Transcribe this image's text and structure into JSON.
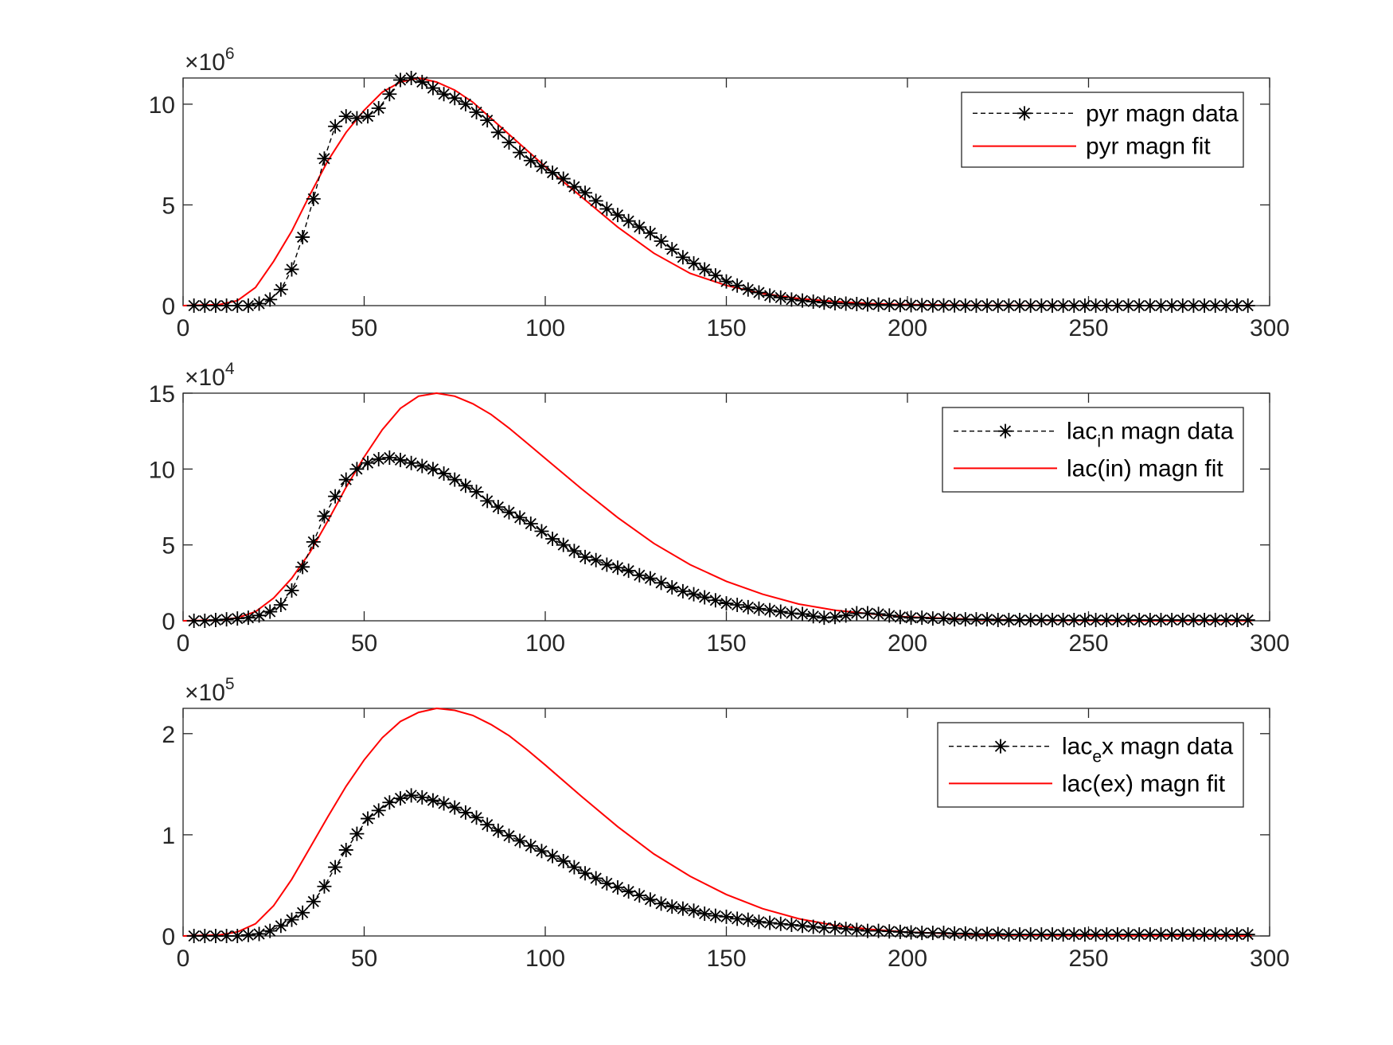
{
  "colors": {
    "data": "#000000",
    "fit": "#ff0000",
    "axes": "#262626",
    "background": "#ffffff"
  },
  "chart_data": [
    {
      "type": "line",
      "ylim": [
        0,
        11300000
      ],
      "xlim": [
        0,
        300
      ],
      "exponent_label": {
        "prefix": "×10",
        "power": "6"
      },
      "xticks": [
        0,
        50,
        100,
        150,
        200,
        250,
        300
      ],
      "yticks": [
        0,
        5,
        10
      ],
      "ytick_scale": 1000000,
      "legend_position": "top-right",
      "series": [
        {
          "name": "pyr magn data",
          "style": "dashed-black-asterisk",
          "x": [
            3,
            6,
            9,
            12,
            15,
            18,
            21,
            24,
            27,
            30,
            33,
            36,
            39,
            42,
            45,
            48,
            51,
            54,
            57,
            60,
            63,
            66,
            69,
            72,
            75,
            78,
            81,
            84,
            87,
            90,
            93,
            96,
            99,
            102,
            105,
            108,
            111,
            114,
            117,
            120,
            123,
            126,
            129,
            132,
            135,
            138,
            141,
            144,
            147,
            150,
            153,
            156,
            159,
            162,
            165,
            168,
            171,
            174,
            177,
            180,
            183,
            186,
            189,
            192,
            195,
            198,
            201,
            204,
            207,
            210,
            213,
            216,
            219,
            222,
            225,
            228,
            231,
            234,
            237,
            240,
            243,
            246,
            249,
            252,
            255,
            258,
            261,
            264,
            267,
            270,
            273,
            276,
            279,
            282,
            285,
            288,
            291,
            294
          ],
          "values": [
            0,
            0,
            0,
            0,
            0,
            0,
            100000,
            300000,
            800000,
            1800000,
            3400000,
            5300000,
            7300000,
            8900000,
            9400000,
            9300000,
            9400000,
            9800000,
            10500000,
            11200000,
            11300000,
            11100000,
            10800000,
            10500000,
            10300000,
            10000000,
            9600000,
            9200000,
            8600000,
            8100000,
            7600000,
            7200000,
            6900000,
            6600000,
            6300000,
            5900000,
            5600000,
            5200000,
            4800000,
            4500000,
            4200000,
            3900000,
            3600000,
            3200000,
            2800000,
            2400000,
            2100000,
            1800000,
            1500000,
            1200000,
            1000000,
            800000,
            650000,
            500000,
            400000,
            300000,
            250000,
            200000,
            150000,
            120000,
            100000,
            80000,
            60000,
            50000,
            40000,
            30000,
            20000,
            20000,
            10000,
            10000,
            10000,
            0,
            0,
            0,
            0,
            0,
            0,
            0,
            0,
            0,
            0,
            0,
            0,
            0,
            0,
            0,
            0,
            0,
            0,
            0,
            0,
            0,
            0,
            0,
            0,
            0,
            0,
            0
          ]
        },
        {
          "name": "pyr magn fit",
          "style": "solid-red",
          "peak_x": 63,
          "peak_value": 11300000,
          "x": [
            0,
            10,
            15,
            20,
            25,
            30,
            35,
            40,
            45,
            50,
            55,
            60,
            65,
            70,
            75,
            80,
            85,
            90,
            95,
            100,
            110,
            120,
            130,
            140,
            150,
            160,
            170,
            180,
            190,
            200,
            220,
            250,
            295
          ],
          "values": [
            0,
            50000,
            250000,
            900000,
            2200000,
            3700000,
            5500000,
            7200000,
            8600000,
            9700000,
            10600000,
            11100000,
            11300000,
            11100000,
            10700000,
            10100000,
            9300000,
            8500000,
            7700000,
            6900000,
            5400000,
            3900000,
            2600000,
            1600000,
            1000000,
            600000,
            350000,
            200000,
            100000,
            50000,
            10000,
            0,
            0
          ]
        }
      ]
    },
    {
      "type": "line",
      "ylim": [
        0,
        150000
      ],
      "xlim": [
        0,
        300
      ],
      "exponent_label": {
        "prefix": "×10",
        "power": "4"
      },
      "xticks": [
        0,
        50,
        100,
        150,
        200,
        250,
        300
      ],
      "yticks": [
        0,
        5,
        10,
        15
      ],
      "ytick_scale": 10000,
      "legend_position": "top-right",
      "series": [
        {
          "name": "lac",
          "name_sub": "i",
          "name_rest": "n magn data",
          "style": "dashed-black-asterisk",
          "x": [
            3,
            6,
            9,
            12,
            15,
            18,
            21,
            24,
            27,
            30,
            33,
            36,
            39,
            42,
            45,
            48,
            51,
            54,
            57,
            60,
            63,
            66,
            69,
            72,
            75,
            78,
            81,
            84,
            87,
            90,
            93,
            96,
            99,
            102,
            105,
            108,
            111,
            114,
            117,
            120,
            123,
            126,
            129,
            132,
            135,
            138,
            141,
            144,
            147,
            150,
            153,
            156,
            159,
            162,
            165,
            168,
            171,
            174,
            177,
            180,
            183,
            186,
            189,
            192,
            195,
            198,
            201,
            204,
            207,
            210,
            213,
            216,
            219,
            222,
            225,
            228,
            231,
            234,
            237,
            240,
            243,
            246,
            249,
            252,
            255,
            258,
            261,
            264,
            267,
            270,
            273,
            276,
            279,
            282,
            285,
            288,
            291,
            294
          ],
          "values": [
            0,
            0,
            500,
            1000,
            1500,
            2000,
            3500,
            6000,
            10500,
            20000,
            35500,
            52000,
            69000,
            82000,
            93000,
            100000,
            104000,
            106500,
            107500,
            106000,
            104000,
            102000,
            100000,
            97000,
            93000,
            89000,
            85000,
            79000,
            75000,
            71500,
            68000,
            64000,
            59000,
            54000,
            50000,
            46000,
            42000,
            40000,
            37000,
            35000,
            33000,
            30000,
            28000,
            25000,
            22000,
            19500,
            17500,
            15500,
            13500,
            11500,
            10500,
            9000,
            8000,
            7000,
            6000,
            5000,
            4500,
            3000,
            2000,
            2500,
            3500,
            5000,
            5000,
            4500,
            3500,
            2500,
            2000,
            2000,
            1500,
            1500,
            1000,
            1000,
            1000,
            1000,
            500,
            500,
            500,
            500,
            500,
            500,
            500,
            500,
            500,
            500,
            500,
            500,
            500,
            500,
            500,
            500,
            500,
            500,
            500,
            500,
            500,
            500,
            500,
            500
          ]
        },
        {
          "name": "lac(in) magn fit",
          "style": "solid-red",
          "x": [
            0,
            10,
            15,
            20,
            25,
            30,
            35,
            40,
            45,
            50,
            55,
            60,
            65,
            70,
            75,
            80,
            85,
            90,
            95,
            100,
            110,
            120,
            130,
            140,
            150,
            160,
            170,
            180,
            190,
            200,
            220,
            250,
            295
          ],
          "values": [
            0,
            500,
            2000,
            6000,
            15000,
            28000,
            45000,
            66000,
            88000,
            108000,
            126000,
            140000,
            148000,
            150000,
            148000,
            143000,
            136000,
            127000,
            117000,
            107000,
            87000,
            68000,
            51000,
            37000,
            26000,
            17500,
            11000,
            7000,
            4500,
            2500,
            800,
            100,
            0
          ]
        }
      ]
    },
    {
      "type": "line",
      "ylim": [
        0,
        225000
      ],
      "xlim": [
        0,
        300
      ],
      "exponent_label": {
        "prefix": "×10",
        "power": "5"
      },
      "xticks": [
        0,
        50,
        100,
        150,
        200,
        250,
        300
      ],
      "yticks": [
        0,
        1,
        2
      ],
      "ytick_scale": 100000,
      "legend_position": "top-right",
      "series": [
        {
          "name": "lac",
          "name_sub": "e",
          "name_rest": "x magn data",
          "style": "dashed-black-asterisk",
          "x": [
            3,
            6,
            9,
            12,
            15,
            18,
            21,
            24,
            27,
            30,
            33,
            36,
            39,
            42,
            45,
            48,
            51,
            54,
            57,
            60,
            63,
            66,
            69,
            72,
            75,
            78,
            81,
            84,
            87,
            90,
            93,
            96,
            99,
            102,
            105,
            108,
            111,
            114,
            117,
            120,
            123,
            126,
            129,
            132,
            135,
            138,
            141,
            144,
            147,
            150,
            153,
            156,
            159,
            162,
            165,
            168,
            171,
            174,
            177,
            180,
            183,
            186,
            189,
            192,
            195,
            198,
            201,
            204,
            207,
            210,
            213,
            216,
            219,
            222,
            225,
            228,
            231,
            234,
            237,
            240,
            243,
            246,
            249,
            252,
            255,
            258,
            261,
            264,
            267,
            270,
            273,
            276,
            279,
            282,
            285,
            288,
            291,
            294
          ],
          "values": [
            0,
            0,
            0,
            0,
            0,
            1000,
            2000,
            5000,
            10000,
            16000,
            23000,
            34000,
            49000,
            68000,
            85000,
            101000,
            116000,
            124000,
            132000,
            136000,
            139000,
            137000,
            134000,
            131000,
            127000,
            122000,
            117000,
            110000,
            104000,
            99000,
            94000,
            89000,
            84000,
            79000,
            74000,
            68000,
            62000,
            57000,
            52000,
            48000,
            44000,
            40000,
            36000,
            32000,
            29000,
            27000,
            25000,
            22000,
            20000,
            19000,
            17000,
            16000,
            14000,
            13000,
            12000,
            11000,
            10000,
            9000,
            8000,
            8000,
            7000,
            6000,
            5000,
            5000,
            4500,
            4000,
            3500,
            3000,
            3000,
            3000,
            2500,
            2500,
            2000,
            2000,
            2000,
            1500,
            1500,
            1500,
            1500,
            1500,
            1500,
            1500,
            1500,
            1500,
            1500,
            1500,
            1500,
            1500,
            1500,
            1500,
            1500,
            1500,
            1500,
            1500,
            1500,
            1500,
            1500,
            1500
          ]
        },
        {
          "name": "lac(ex) magn fit",
          "style": "solid-red",
          "x": [
            0,
            10,
            15,
            20,
            25,
            30,
            35,
            40,
            45,
            50,
            55,
            60,
            65,
            70,
            75,
            80,
            85,
            90,
            95,
            100,
            110,
            120,
            130,
            140,
            150,
            160,
            170,
            180,
            190,
            200,
            220,
            250,
            295
          ],
          "values": [
            0,
            1000,
            4000,
            12000,
            30000,
            56000,
            87000,
            118000,
            148000,
            174000,
            196000,
            212000,
            221000,
            225000,
            223000,
            218000,
            209000,
            198000,
            184000,
            169000,
            138000,
            108000,
            81000,
            59000,
            41000,
            27000,
            17000,
            10500,
            6500,
            3800,
            1200,
            200,
            0
          ]
        }
      ]
    }
  ]
}
